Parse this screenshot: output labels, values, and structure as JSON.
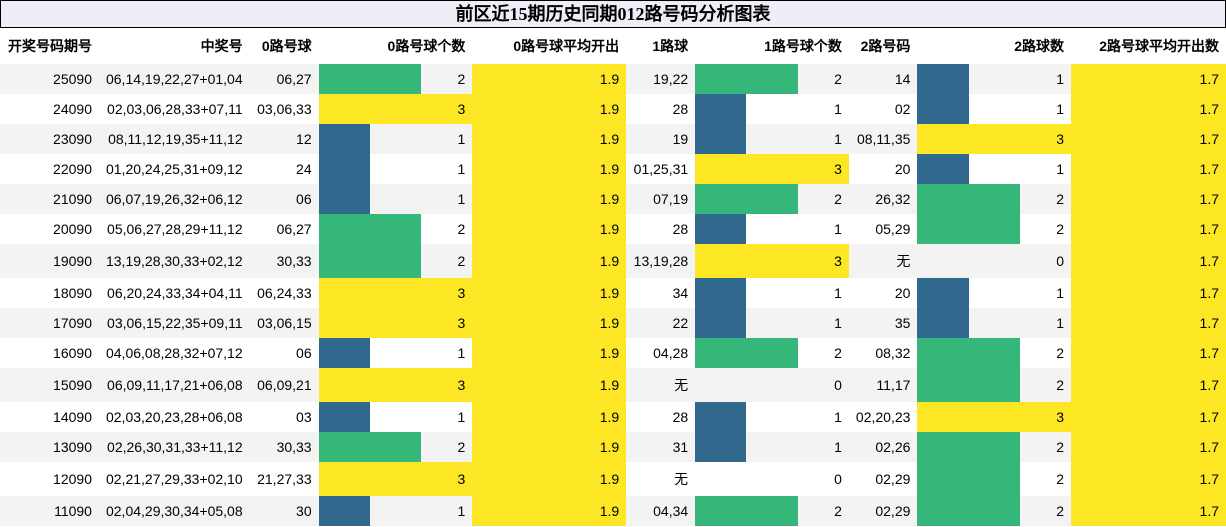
{
  "title": "前区近15期历史同期012路号码分析图表",
  "colors": {
    "count_1": "#31688e",
    "count_2": "#35b779",
    "count_3": "#fde725",
    "average": "#fde725",
    "row_odd": "#f3f3f3",
    "row_even": "#ffffff",
    "title_bg": "#eeeef8"
  },
  "headers": [
    "开奖号码期号",
    "中奖号",
    "0路号球",
    "0路号球个数",
    "0路号球平均开出",
    "1路球",
    "1路号球个数",
    "2路号码",
    "2路球数",
    "2路号球平均开出数"
  ],
  "chart_data": {
    "type": "table",
    "title": "前区近15期历史同期012路号码分析图表",
    "columns": [
      "开奖号码期号",
      "中奖号",
      "0路号球",
      "0路号球个数",
      "0路号球平均开出",
      "1路球",
      "1路号球个数",
      "2路号码",
      "2路球数",
      "2路号球平均开出数"
    ],
    "count_scale_max": 3,
    "rows": [
      {
        "issue": "25090",
        "numbers": "06,14,19,22,27+01,04",
        "r0": "06,27",
        "c0": 2,
        "a0": "1.9",
        "r1": "19,22",
        "c1": 2,
        "r2": "14",
        "c2": 1,
        "a2": "1.7"
      },
      {
        "issue": "24090",
        "numbers": "02,03,06,28,33+07,11",
        "r0": "03,06,33",
        "c0": 3,
        "a0": "1.9",
        "r1": "28",
        "c1": 1,
        "r2": "02",
        "c2": 1,
        "a2": "1.7"
      },
      {
        "issue": "23090",
        "numbers": "08,11,12,19,35+11,12",
        "r0": "12",
        "c0": 1,
        "a0": "1.9",
        "r1": "19",
        "c1": 1,
        "r2": "08,11,35",
        "c2": 3,
        "a2": "1.7"
      },
      {
        "issue": "22090",
        "numbers": "01,20,24,25,31+09,12",
        "r0": "24",
        "c0": 1,
        "a0": "1.9",
        "r1": "01,25,31",
        "c1": 3,
        "r2": "20",
        "c2": 1,
        "a2": "1.7"
      },
      {
        "issue": "21090",
        "numbers": "06,07,19,26,32+06,12",
        "r0": "06",
        "c0": 1,
        "a0": "1.9",
        "r1": "07,19",
        "c1": 2,
        "r2": "26,32",
        "c2": 2,
        "a2": "1.7"
      },
      {
        "issue": "20090",
        "numbers": "05,06,27,28,29+11,12",
        "r0": "06,27",
        "c0": 2,
        "a0": "1.9",
        "r1": "28",
        "c1": 1,
        "r2": "05,29",
        "c2": 2,
        "a2": "1.7"
      },
      {
        "issue": "19090",
        "numbers": "13,19,28,30,33+02,12",
        "r0": "30,33",
        "c0": 2,
        "a0": "1.9",
        "r1": "13,19,28",
        "c1": 3,
        "r2": "无",
        "c2": 0,
        "a2": "1.7"
      },
      {
        "issue": "18090",
        "numbers": "06,20,24,33,34+04,11",
        "r0": "06,24,33",
        "c0": 3,
        "a0": "1.9",
        "r1": "34",
        "c1": 1,
        "r2": "20",
        "c2": 1,
        "a2": "1.7"
      },
      {
        "issue": "17090",
        "numbers": "03,06,15,22,35+09,11",
        "r0": "03,06,15",
        "c0": 3,
        "a0": "1.9",
        "r1": "22",
        "c1": 1,
        "r2": "35",
        "c2": 1,
        "a2": "1.7"
      },
      {
        "issue": "16090",
        "numbers": "04,06,08,28,32+07,12",
        "r0": "06",
        "c0": 1,
        "a0": "1.9",
        "r1": "04,28",
        "c1": 2,
        "r2": "08,32",
        "c2": 2,
        "a2": "1.7"
      },
      {
        "issue": "15090",
        "numbers": "06,09,11,17,21+06,08",
        "r0": "06,09,21",
        "c0": 3,
        "a0": "1.9",
        "r1": "无",
        "c1": 0,
        "r2": "11,17",
        "c2": 2,
        "a2": "1.7"
      },
      {
        "issue": "14090",
        "numbers": "02,03,20,23,28+06,08",
        "r0": "03",
        "c0": 1,
        "a0": "1.9",
        "r1": "28",
        "c1": 1,
        "r2": "02,20,23",
        "c2": 3,
        "a2": "1.7"
      },
      {
        "issue": "13090",
        "numbers": "02,26,30,31,33+11,12",
        "r0": "30,33",
        "c0": 2,
        "a0": "1.9",
        "r1": "31",
        "c1": 1,
        "r2": "02,26",
        "c2": 2,
        "a2": "1.7"
      },
      {
        "issue": "12090",
        "numbers": "02,21,27,29,33+02,10",
        "r0": "21,27,33",
        "c0": 3,
        "a0": "1.9",
        "r1": "无",
        "c1": 0,
        "r2": "02,29",
        "c2": 2,
        "a2": "1.7"
      },
      {
        "issue": "11090",
        "numbers": "02,04,29,30,34+05,08",
        "r0": "30",
        "c0": 1,
        "a0": "1.9",
        "r1": "04,34",
        "c1": 2,
        "r2": "02,29",
        "c2": 2,
        "a2": "1.7"
      }
    ]
  }
}
